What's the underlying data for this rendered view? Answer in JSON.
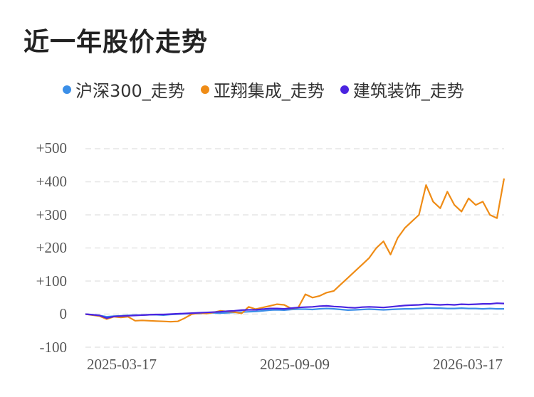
{
  "title": "近一年股价走势",
  "chart_data": {
    "type": "line",
    "title": "近一年股价走势",
    "xlabel": "",
    "ylabel": "",
    "x_ticks": [
      "2025-03-17",
      "2025-09-09",
      "2026-03-17"
    ],
    "y_ticks": [
      "+500",
      "+400",
      "+300",
      "+200",
      "+100",
      "0",
      "-100"
    ],
    "ylim": [
      -100,
      500
    ],
    "grid": true,
    "legend_position": "top",
    "series": [
      {
        "name": "沪深300_走势",
        "color": "#3b8fe8",
        "values": [
          0,
          -2,
          -4,
          -8,
          -6,
          -5,
          -4,
          -3,
          -3,
          -2,
          -2,
          -3,
          -1,
          0,
          1,
          2,
          2,
          3,
          4,
          3,
          4,
          5,
          6,
          7,
          8,
          10,
          12,
          13,
          12,
          14,
          15,
          15,
          14,
          16,
          17,
          16,
          14,
          12,
          13,
          14,
          15,
          14,
          13,
          14,
          15,
          16,
          16,
          17,
          18,
          18,
          18,
          17,
          17,
          18,
          17,
          17,
          16,
          17,
          16,
          16
        ]
      },
      {
        "name": "亚翔集成_走势",
        "color": "#ef8c16",
        "values": [
          0,
          -3,
          -6,
          -15,
          -8,
          -10,
          -8,
          -20,
          -19,
          -20,
          -21,
          -22,
          -23,
          -22,
          -12,
          0,
          3,
          2,
          5,
          10,
          8,
          6,
          2,
          22,
          15,
          20,
          25,
          30,
          28,
          17,
          20,
          60,
          50,
          55,
          65,
          70,
          90,
          110,
          130,
          150,
          170,
          200,
          220,
          180,
          230,
          260,
          280,
          300,
          390,
          340,
          320,
          370,
          330,
          310,
          350,
          330,
          340,
          300,
          290,
          410
        ]
      },
      {
        "name": "建筑装饰_走势",
        "color": "#4a23e0",
        "values": [
          0,
          -2,
          -4,
          -12,
          -7,
          -6,
          -5,
          -4,
          -3,
          -2,
          -1,
          -1,
          0,
          1,
          2,
          3,
          4,
          5,
          6,
          7,
          9,
          10,
          12,
          13,
          13,
          15,
          17,
          17,
          16,
          18,
          20,
          21,
          22,
          24,
          25,
          23,
          22,
          20,
          19,
          21,
          22,
          21,
          20,
          22,
          24,
          26,
          27,
          28,
          30,
          29,
          28,
          29,
          28,
          30,
          29,
          30,
          31,
          31,
          33,
          32
        ]
      }
    ]
  }
}
